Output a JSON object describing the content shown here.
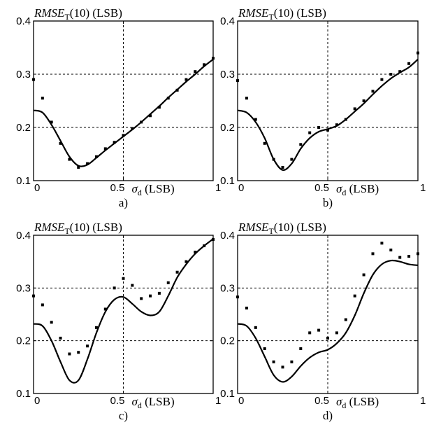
{
  "chart_data": [
    {
      "type": "scatter",
      "panel_label": "a)",
      "ylabel": "RMSE_T(10) (LSB)",
      "ylabel_main": "RMSE",
      "ylabel_sub": "T",
      "ylabel_rest": "(10) (LSB)",
      "xlabel_main": "σ",
      "xlabel_sub": "d",
      "xlabel_rest": " (LSB)",
      "xlim": [
        0,
        1
      ],
      "ylim": [
        0.1,
        0.4
      ],
      "xticks": [
        "0",
        "0.5",
        "1"
      ],
      "yticks": [
        "0.1",
        "0.2",
        "0.3",
        "0.4"
      ],
      "grid": true,
      "series": [
        {
          "style": "line",
          "x": [
            0,
            0.05,
            0.1,
            0.15,
            0.2,
            0.25,
            0.3,
            0.35,
            0.4,
            0.45,
            0.5,
            0.55,
            0.6,
            0.65,
            0.7,
            0.75,
            0.8,
            0.85,
            0.9,
            0.95,
            1.0
          ],
          "y": [
            0.232,
            0.228,
            0.205,
            0.175,
            0.145,
            0.128,
            0.13,
            0.143,
            0.157,
            0.17,
            0.183,
            0.196,
            0.21,
            0.225,
            0.24,
            0.256,
            0.271,
            0.286,
            0.3,
            0.315,
            0.328
          ]
        },
        {
          "style": "dots",
          "x": [
            0,
            0.05,
            0.1,
            0.15,
            0.2,
            0.25,
            0.3,
            0.35,
            0.4,
            0.45,
            0.5,
            0.55,
            0.6,
            0.65,
            0.7,
            0.75,
            0.8,
            0.85,
            0.9,
            0.95,
            1.0
          ],
          "y": [
            0.29,
            0.255,
            0.21,
            0.17,
            0.14,
            0.125,
            0.132,
            0.145,
            0.16,
            0.172,
            0.185,
            0.198,
            0.21,
            0.222,
            0.238,
            0.255,
            0.27,
            0.29,
            0.305,
            0.318,
            0.33
          ]
        }
      ]
    },
    {
      "type": "scatter",
      "panel_label": "b)",
      "ylabel": "RMSE_T(10) (LSB)",
      "ylabel_main": "RMSE",
      "ylabel_sub": "T",
      "ylabel_rest": "(10) (LSB)",
      "xlabel_main": "σ",
      "xlabel_sub": "d",
      "xlabel_rest": " (LSB)",
      "xlim": [
        0,
        1
      ],
      "ylim": [
        0.1,
        0.4
      ],
      "xticks": [
        "0",
        "0.5",
        "1"
      ],
      "yticks": [
        "0.1",
        "0.2",
        "0.3",
        "0.4"
      ],
      "grid": true,
      "series": [
        {
          "style": "line",
          "x": [
            0,
            0.05,
            0.1,
            0.15,
            0.2,
            0.25,
            0.3,
            0.35,
            0.4,
            0.45,
            0.5,
            0.55,
            0.6,
            0.65,
            0.7,
            0.75,
            0.8,
            0.85,
            0.9,
            0.95,
            1.0
          ],
          "y": [
            0.232,
            0.228,
            0.21,
            0.18,
            0.14,
            0.12,
            0.132,
            0.16,
            0.18,
            0.192,
            0.197,
            0.203,
            0.215,
            0.23,
            0.245,
            0.262,
            0.278,
            0.292,
            0.303,
            0.313,
            0.328
          ]
        },
        {
          "style": "dots",
          "x": [
            0,
            0.05,
            0.1,
            0.15,
            0.2,
            0.25,
            0.3,
            0.35,
            0.4,
            0.45,
            0.5,
            0.55,
            0.6,
            0.65,
            0.7,
            0.75,
            0.8,
            0.85,
            0.9,
            0.95,
            1.0
          ],
          "y": [
            0.288,
            0.255,
            0.215,
            0.17,
            0.14,
            0.125,
            0.14,
            0.168,
            0.19,
            0.2,
            0.195,
            0.205,
            0.215,
            0.235,
            0.25,
            0.268,
            0.29,
            0.3,
            0.305,
            0.32,
            0.34
          ]
        }
      ]
    },
    {
      "type": "scatter",
      "panel_label": "c)",
      "ylabel": "RMSE_T(10) (LSB)",
      "ylabel_main": "RMSE",
      "ylabel_sub": "T",
      "ylabel_rest": "(10) (LSB)",
      "xlabel_main": "σ",
      "xlabel_sub": "d",
      "xlabel_rest": " (LSB)",
      "xlim": [
        0,
        1
      ],
      "ylim": [
        0.1,
        0.4
      ],
      "xticks": [
        "0",
        "0.5",
        "1"
      ],
      "yticks": [
        "0.1",
        "0.2",
        "0.3",
        "0.4"
      ],
      "grid": true,
      "series": [
        {
          "style": "line",
          "x": [
            0,
            0.05,
            0.1,
            0.15,
            0.2,
            0.25,
            0.3,
            0.35,
            0.4,
            0.45,
            0.5,
            0.55,
            0.6,
            0.65,
            0.7,
            0.75,
            0.8,
            0.85,
            0.9,
            0.95,
            1.0
          ],
          "y": [
            0.232,
            0.228,
            0.2,
            0.16,
            0.125,
            0.125,
            0.165,
            0.215,
            0.255,
            0.278,
            0.283,
            0.27,
            0.255,
            0.248,
            0.255,
            0.285,
            0.32,
            0.345,
            0.365,
            0.38,
            0.393
          ]
        },
        {
          "style": "dots",
          "x": [
            0,
            0.05,
            0.1,
            0.15,
            0.2,
            0.25,
            0.3,
            0.35,
            0.4,
            0.45,
            0.5,
            0.55,
            0.6,
            0.65,
            0.7,
            0.75,
            0.8,
            0.85,
            0.9,
            0.95,
            1.0
          ],
          "y": [
            0.285,
            0.268,
            0.235,
            0.205,
            0.175,
            0.178,
            0.19,
            0.225,
            0.26,
            0.3,
            0.318,
            0.305,
            0.28,
            0.285,
            0.29,
            0.31,
            0.33,
            0.35,
            0.368,
            0.38,
            0.392
          ]
        }
      ]
    },
    {
      "type": "scatter",
      "panel_label": "d)",
      "ylabel": "RMSE_T(10) (LSB)",
      "ylabel_main": "RMSE",
      "ylabel_sub": "T",
      "ylabel_rest": "(10) (LSB)",
      "xlabel_main": "σ",
      "xlabel_sub": "d",
      "xlabel_rest": " (LSB)",
      "xlim": [
        0,
        1
      ],
      "ylim": [
        0.1,
        0.4
      ],
      "xticks": [
        "0",
        "0.5",
        "1"
      ],
      "yticks": [
        "0.1",
        "0.2",
        "0.3",
        "0.4"
      ],
      "grid": true,
      "series": [
        {
          "style": "line",
          "x": [
            0,
            0.05,
            0.1,
            0.15,
            0.2,
            0.25,
            0.3,
            0.35,
            0.4,
            0.45,
            0.5,
            0.55,
            0.6,
            0.65,
            0.7,
            0.75,
            0.8,
            0.85,
            0.9,
            0.95,
            1.0
          ],
          "y": [
            0.232,
            0.228,
            0.205,
            0.17,
            0.135,
            0.122,
            0.132,
            0.152,
            0.168,
            0.178,
            0.183,
            0.195,
            0.215,
            0.248,
            0.29,
            0.325,
            0.345,
            0.352,
            0.35,
            0.345,
            0.343
          ]
        },
        {
          "style": "dots",
          "x": [
            0,
            0.05,
            0.1,
            0.15,
            0.2,
            0.25,
            0.3,
            0.35,
            0.4,
            0.45,
            0.5,
            0.55,
            0.6,
            0.65,
            0.7,
            0.75,
            0.8,
            0.85,
            0.9,
            0.95,
            1.0
          ],
          "y": [
            0.283,
            0.262,
            0.225,
            0.185,
            0.16,
            0.15,
            0.16,
            0.185,
            0.215,
            0.22,
            0.205,
            0.215,
            0.24,
            0.285,
            0.325,
            0.365,
            0.385,
            0.372,
            0.358,
            0.36,
            0.365
          ]
        }
      ]
    }
  ]
}
